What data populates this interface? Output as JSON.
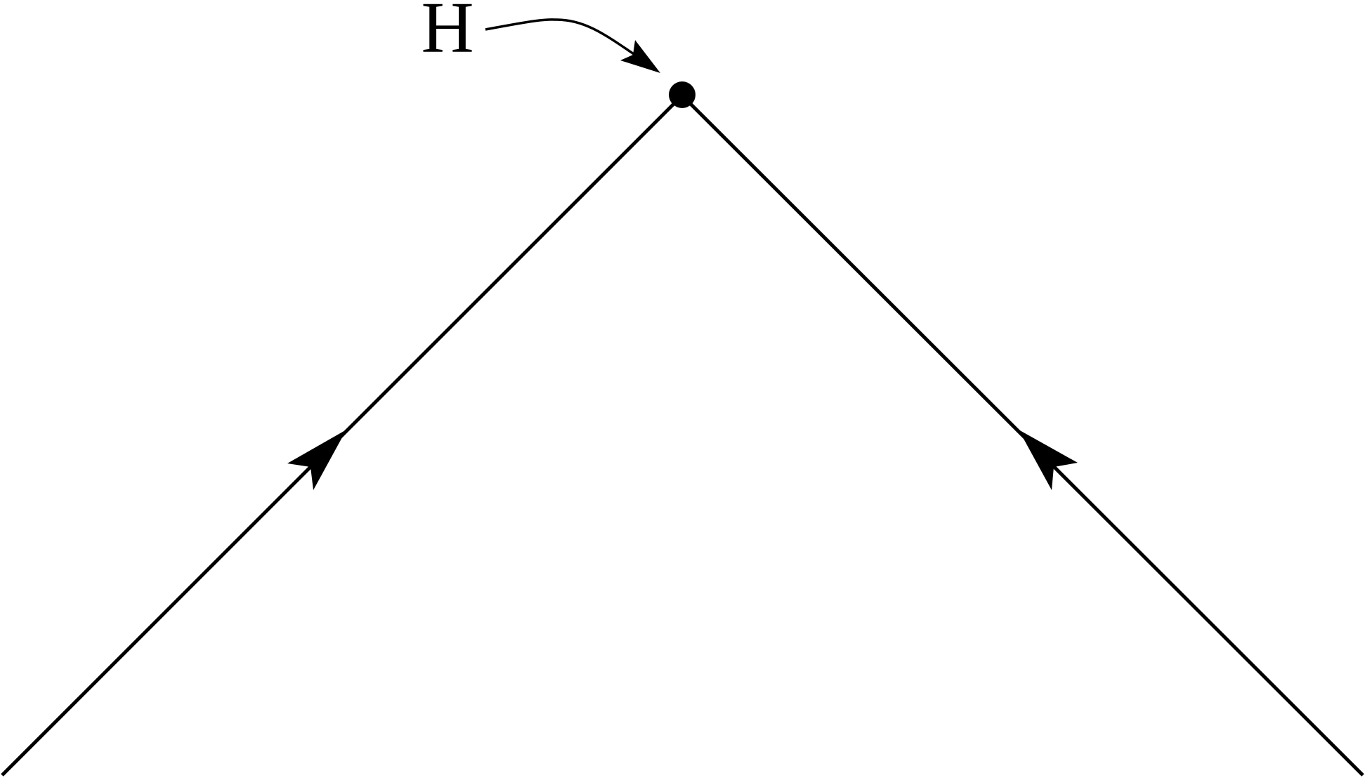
{
  "nodes": [
    {
      "label": "H"
    }
  ]
}
